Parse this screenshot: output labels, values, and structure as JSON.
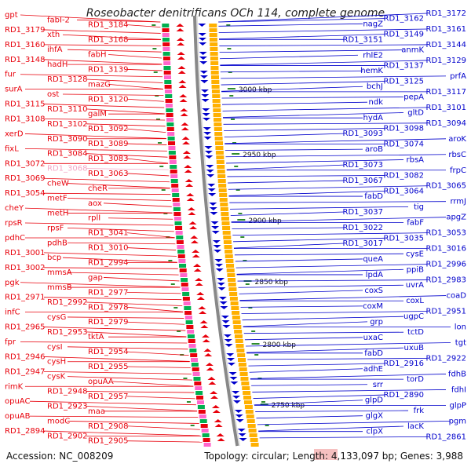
{
  "title": "Roseobacter denitrificans OCh 114, complete genome",
  "footer": {
    "accession": "Accession: NC_008209",
    "summary": "Topology: circular; Length: 4,133,097 bp; Genes: 3,988"
  },
  "colors": {
    "forward": "#e8000b",
    "reverse": "#0000cc",
    "highlight": "#f4a6c6",
    "backbone": "#888888",
    "tick": "#2e8b2e"
  },
  "scale": {
    "unit": "kbp",
    "ticks": [
      {
        "label": "3000 kbp"
      },
      {
        "label": "2950 kbp"
      },
      {
        "label": "2900 kbp"
      },
      {
        "label": "2850 kbp"
      },
      {
        "label": "2800 kbp"
      },
      {
        "label": "2750 kbp"
      }
    ]
  },
  "left_labels": [
    "gpt",
    "fabI-2",
    "RD1_3184",
    "RD1_3179",
    "xth",
    "RD1_3168",
    "RD1_3160",
    "ihfA",
    "fabH",
    "RD1_3148",
    "hadH",
    "RD1_3139",
    "fur",
    "RD1_3128",
    "mazG",
    "surA",
    "ost",
    "RD1_3120",
    "RD1_3115",
    "RD1_3110",
    "galM",
    "RD1_3108",
    "RD1_3102",
    "RD1_3092",
    "xerD",
    "RD1_3090",
    "RD1_3089",
    "fixL",
    "RD1_3084",
    "RD1_3083",
    "RD1_3072",
    "RD1_3068",
    "RD1_3063",
    "RD1_3069",
    "cheW",
    "cheR",
    "RD1_3054",
    "metF",
    "aox",
    "cheY",
    "metH",
    "rplI",
    "rpsR",
    "rpsF",
    "RD1_3041",
    "pdhC",
    "pdhB",
    "RD1_3010",
    "RD1_3001",
    "bcp",
    "RD1_2994",
    "RD1_3002",
    "mmsA",
    "gap",
    "pgk",
    "mmsB",
    "RD1_2977",
    "RD1_2971",
    "RD1_2992",
    "RD1_2978",
    "infC",
    "cysG",
    "RD1_2979",
    "RD1_2965",
    "RD1_2953",
    "tktA",
    "fpr",
    "cysI",
    "RD1_2954",
    "RD1_2946",
    "cysH",
    "RD1_2955",
    "RD1_2947",
    "cysK",
    "opuAA",
    "rimK",
    "RD1_2948",
    "RD1_2957",
    "opuAC",
    "RD1_2923",
    "maa",
    "opuAB",
    "modC",
    "RD1_2908",
    "RD1_2894",
    "RD1_2902",
    "RD1_2905"
  ],
  "right_labels": [
    "RD1_3172",
    "RD1_3162",
    "nagZ",
    "RD1_3161",
    "RD1_3149",
    "RD1_3151",
    "RD1_3144",
    "anmK",
    "rhlE2",
    "RD1_3129",
    "RD1_3137",
    "hemK",
    "prfA",
    "RD1_3125",
    "bchJ",
    "RD1_3117",
    "pepA",
    "ndk",
    "RD1_3101",
    "gltD",
    "hydA",
    "RD1_3094",
    "RD1_3098",
    "RD1_3093",
    "aroK",
    "RD1_3074",
    "aroB",
    "rbsC",
    "rbsA",
    "RD1_3073",
    "frpC",
    "RD1_3082",
    "RD1_3067",
    "RD1_3065",
    "RD1_3064",
    "fabD",
    "rrmJ",
    "tig",
    "RD1_3037",
    "apgZ",
    "fabF",
    "RD1_3022",
    "RD1_3053",
    "RD1_3035",
    "RD1_3017",
    "RD1_3016",
    "cysE",
    "queA",
    "RD1_2996",
    "ppiB",
    "lpdA",
    "RD1_2983",
    "uvrA",
    "coxS",
    "coaD",
    "coxL",
    "coxM",
    "RD1_2951",
    "ugpC",
    "grp",
    "lon",
    "tctD",
    "uxaC",
    "tgt",
    "uxuB",
    "fabD",
    "RD1_2922",
    "RD1_2916",
    "adhE",
    "fdhB",
    "torD",
    "srr",
    "fdhI",
    "RD1_2890",
    "glpD",
    "glpP",
    "frk",
    "glgX",
    "pgm",
    "lacK",
    "clpX",
    "RD1_2861"
  ]
}
